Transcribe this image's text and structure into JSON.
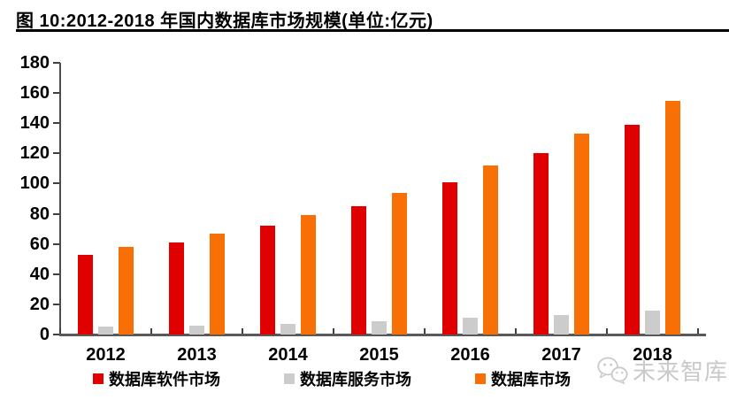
{
  "figure": {
    "title": "图 10:2012-2018 年国内数据库市场规模(单位:亿元)"
  },
  "watermark": {
    "text": "未来智库"
  },
  "chart_data": {
    "type": "bar",
    "title": "图 10:2012-2018 年国内数据库市场规模(单位:亿元)",
    "unit": "亿元",
    "categories": [
      "2012",
      "2013",
      "2014",
      "2015",
      "2016",
      "2017",
      "2018"
    ],
    "series": [
      {
        "name": "数据库软件市场",
        "color": "#e00000",
        "values": [
          53,
          61,
          72,
          85,
          101,
          120,
          139
        ]
      },
      {
        "name": "数据库服务市场",
        "color": "#cccccc",
        "values": [
          5,
          6,
          7,
          9,
          11,
          13,
          16
        ]
      },
      {
        "name": "数据库市场",
        "color": "#f87005",
        "values": [
          58,
          67,
          79,
          94,
          112,
          133,
          155
        ]
      }
    ],
    "xlabel": "",
    "ylabel": "",
    "ylim": [
      0,
      180
    ],
    "ytick_step": 20,
    "grid": false,
    "legend_position": "bottom"
  }
}
